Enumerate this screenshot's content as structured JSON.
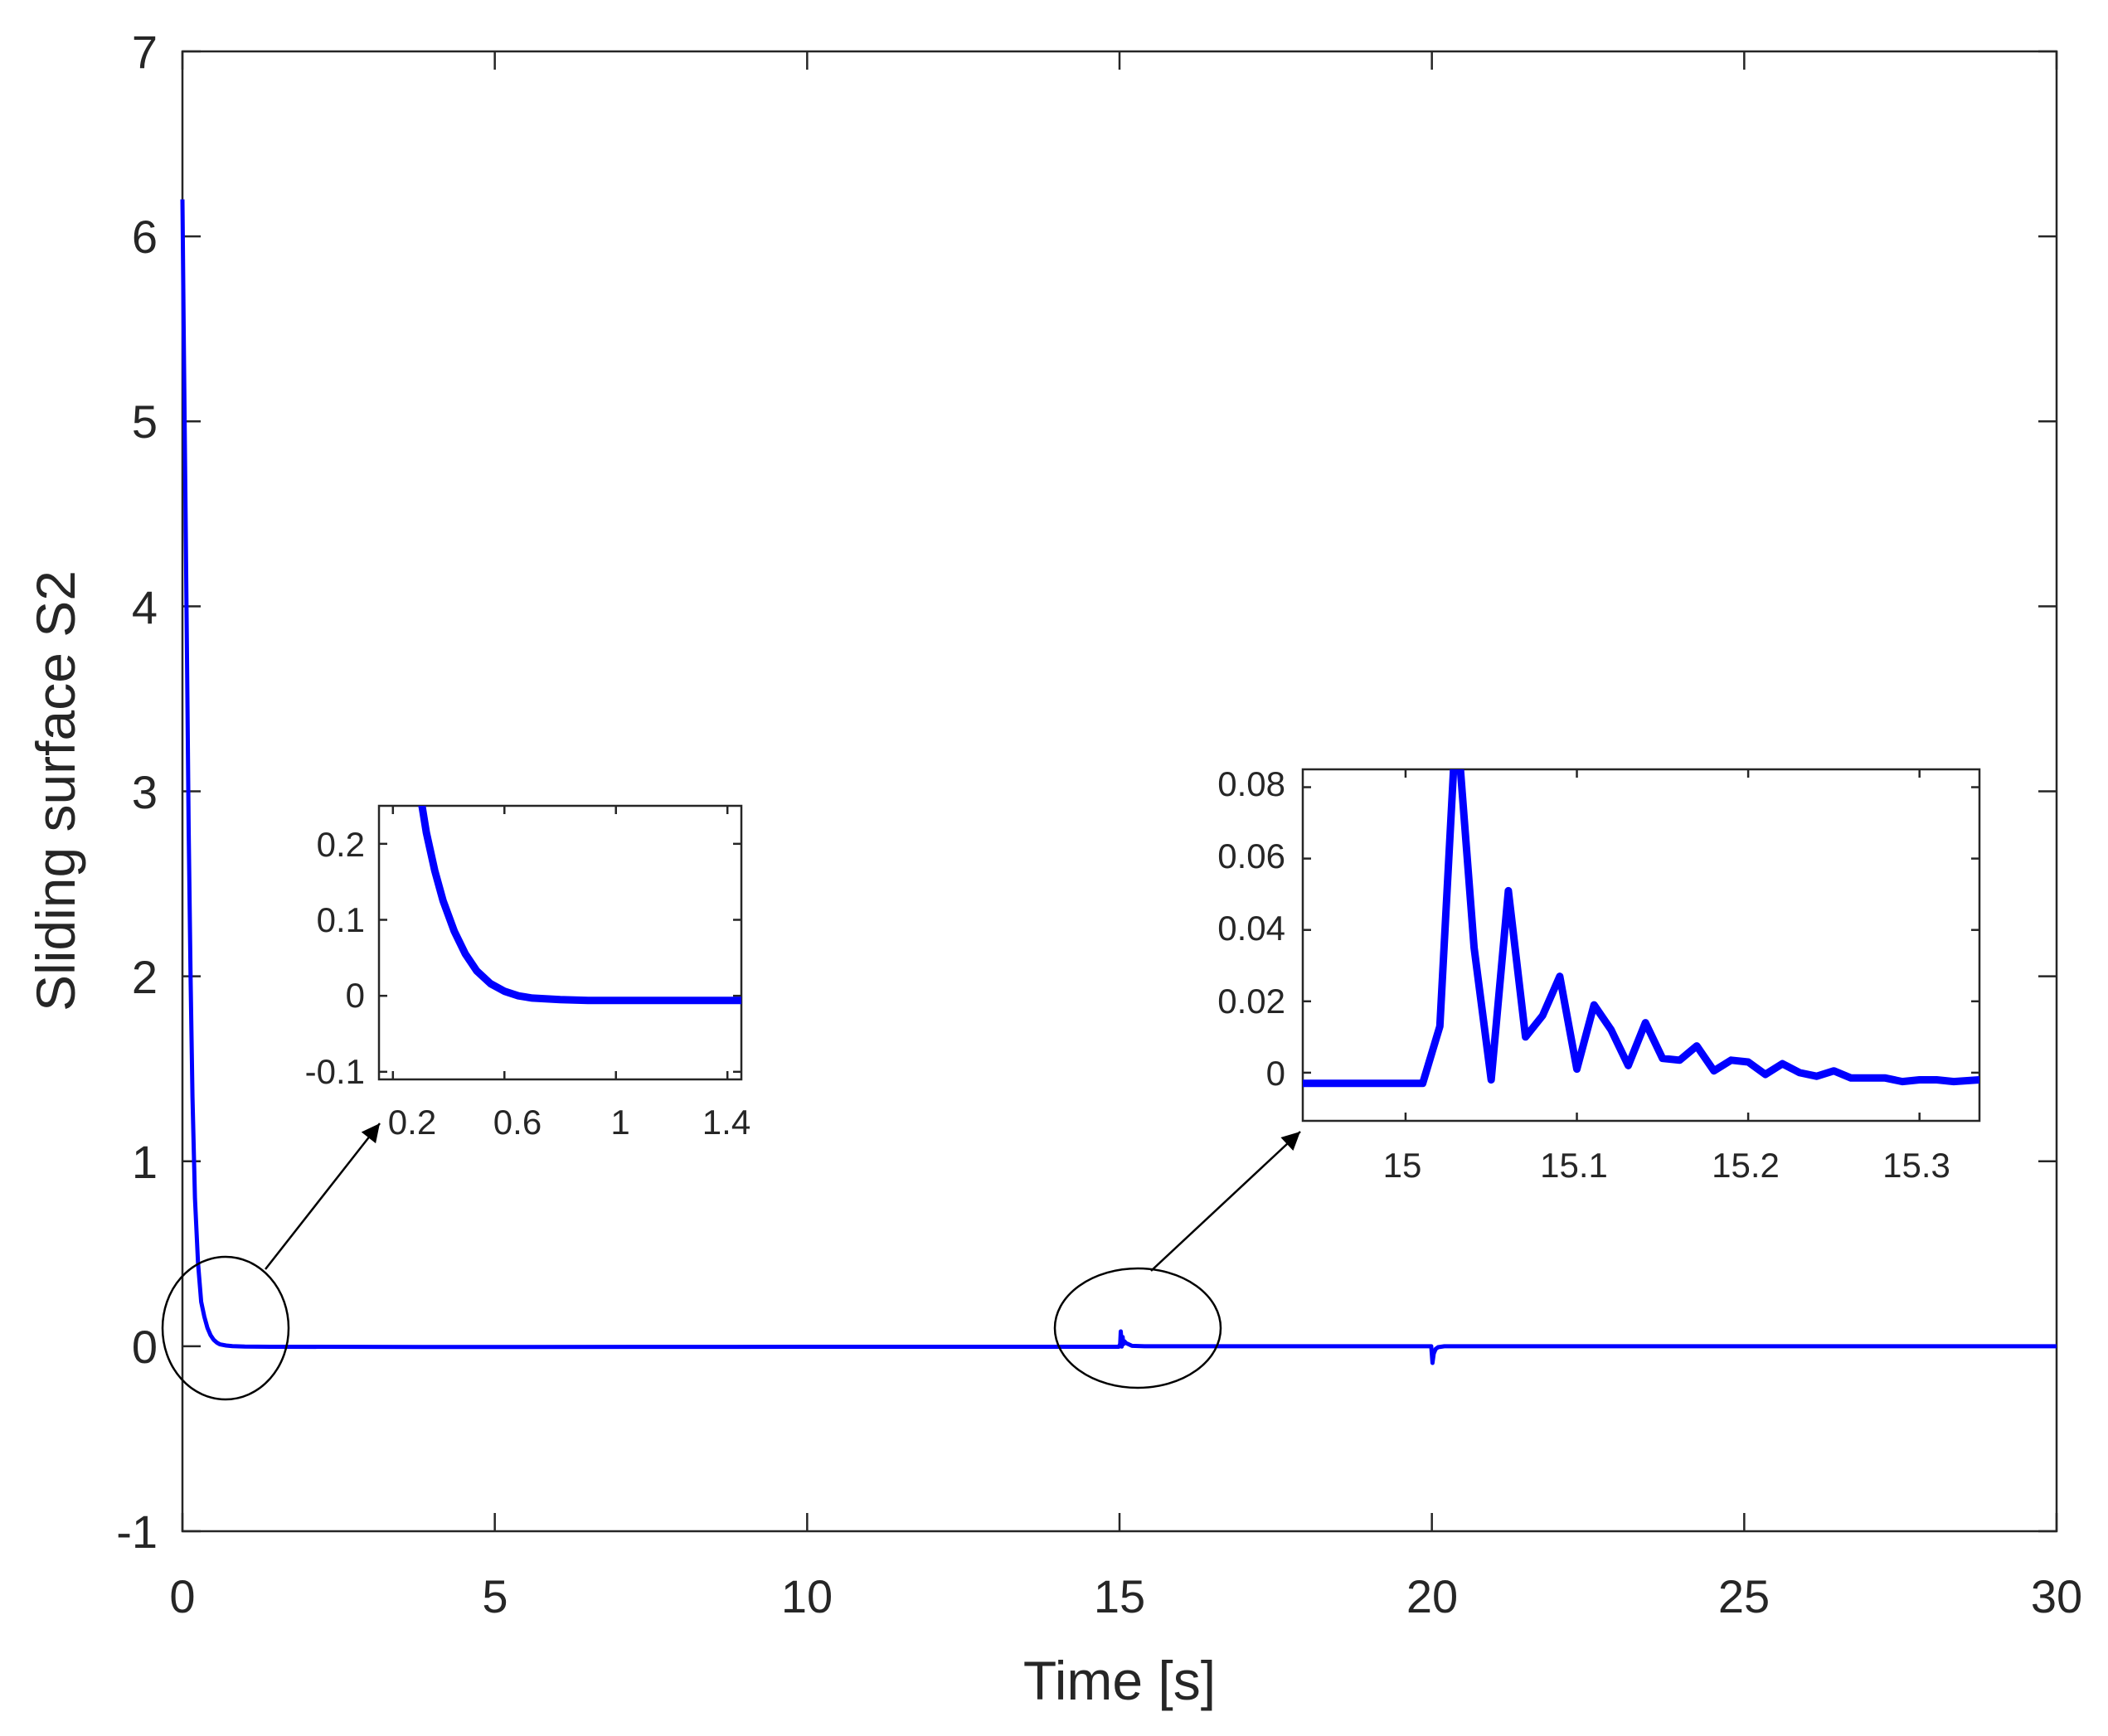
{
  "chart_data": {
    "type": "line",
    "xlabel": "Time [s]",
    "ylabel": "Sliding surface S2",
    "xlim": [
      0,
      30
    ],
    "ylim": [
      -1,
      7
    ],
    "x_ticks": [
      "0",
      "5",
      "10",
      "15",
      "20",
      "25",
      "30"
    ],
    "y_ticks": [
      "-1",
      "0",
      "1",
      "2",
      "3",
      "4",
      "5",
      "6",
      "7"
    ],
    "grid": false,
    "line_color": "#0000ff",
    "series": [
      {
        "name": "S2",
        "x": [
          0,
          0.02,
          0.05,
          0.08,
          0.1,
          0.13,
          0.16,
          0.2,
          0.25,
          0.3,
          0.35,
          0.4,
          0.45,
          0.5,
          0.55,
          0.6,
          0.7,
          0.8,
          1.0,
          1.4,
          5,
          10,
          14.99,
          15.01,
          15.02,
          15.03,
          15.035,
          15.05,
          15.06,
          15.08,
          15.1,
          15.2,
          15.4,
          17,
          19.99,
          20.01,
          20.03,
          20.06,
          20.1,
          20.2,
          25,
          30
        ],
        "values": [
          6.2,
          5.5,
          4.5,
          3.5,
          2.8,
          2.0,
          1.35,
          0.8,
          0.45,
          0.24,
          0.16,
          0.1,
          0.06,
          0.035,
          0.02,
          0.01,
          0.004,
          0.001,
          -0.002,
          -0.003,
          -0.004,
          -0.003,
          -0.003,
          0.012,
          0.08,
          0.035,
          -0.002,
          0.05,
          0.01,
          0.027,
          0.018,
          0.002,
          0.0,
          0.0,
          0.0,
          -0.09,
          -0.04,
          -0.015,
          -0.005,
          0.0,
          0.0,
          0.0
        ]
      }
    ],
    "annotations": [
      {
        "type": "ellipse",
        "center": [
          0.7,
          0.1
        ]
      },
      {
        "type": "ellipse",
        "center": [
          15.3,
          0.1
        ]
      }
    ],
    "insets": [
      {
        "name": "inset-left",
        "xlim": [
          0.15,
          1.45
        ],
        "ylim": [
          -0.11,
          0.25
        ],
        "x_ticks": [
          "0.2",
          "0.6",
          "1",
          "1.4"
        ],
        "x_tick_values": [
          0.2,
          0.6,
          1,
          1.4
        ],
        "y_ticks": [
          "-0.1",
          "0",
          "0.1",
          "0.2"
        ],
        "y_tick_values": [
          -0.1,
          0,
          0.1,
          0.2
        ],
        "series": {
          "x": [
            0.3,
            0.32,
            0.35,
            0.38,
            0.42,
            0.46,
            0.5,
            0.55,
            0.6,
            0.65,
            0.7,
            0.8,
            0.9,
            1.0,
            1.2,
            1.45
          ],
          "values": [
            0.26,
            0.215,
            0.165,
            0.125,
            0.085,
            0.055,
            0.033,
            0.016,
            0.006,
            0.0,
            -0.003,
            -0.005,
            -0.006,
            -0.006,
            -0.006,
            -0.006
          ]
        }
      },
      {
        "name": "inset-right",
        "xlim": [
          14.94,
          15.335
        ],
        "ylim": [
          -0.0135,
          0.085
        ],
        "x_ticks": [
          "15",
          "15.1",
          "15.2",
          "15.3"
        ],
        "x_tick_values": [
          15,
          15.1,
          15.2,
          15.3
        ],
        "y_ticks": [
          "0",
          "0.02",
          "0.04",
          "0.06",
          "0.08"
        ],
        "y_tick_values": [
          0,
          0.02,
          0.04,
          0.06,
          0.08
        ],
        "series": {
          "x": [
            14.94,
            15.01,
            15.02,
            15.028,
            15.032,
            15.04,
            15.05,
            15.06,
            15.07,
            15.08,
            15.09,
            15.1,
            15.11,
            15.12,
            15.13,
            15.14,
            15.15,
            15.16,
            15.17,
            15.18,
            15.19,
            15.2,
            15.21,
            15.22,
            15.23,
            15.24,
            15.25,
            15.26,
            15.27,
            15.28,
            15.29,
            15.3,
            15.31,
            15.32,
            15.335
          ],
          "values": [
            -0.003,
            -0.003,
            0.013,
            0.085,
            0.085,
            0.035,
            -0.002,
            0.051,
            0.01,
            0.016,
            0.027,
            0.001,
            0.019,
            0.012,
            0.002,
            0.014,
            0.004,
            0.0035,
            0.0075,
            0.0005,
            0.0035,
            0.003,
            -0.0005,
            0.0025,
            0.0,
            -0.001,
            0.0005,
            -0.0015,
            -0.0015,
            -0.0015,
            -0.0025,
            -0.002,
            -0.002,
            -0.0025,
            -0.002
          ]
        }
      }
    ]
  }
}
